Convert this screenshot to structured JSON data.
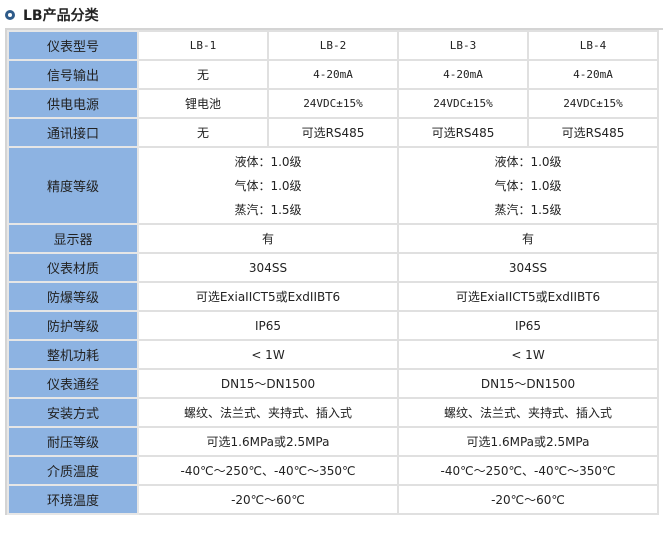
{
  "title": "LB产品分类",
  "models": {
    "label": "仪表型号",
    "values": [
      "LB-1",
      "LB-2",
      "LB-3",
      "LB-4"
    ]
  },
  "signal": {
    "label": "信号输出",
    "values": [
      "无",
      "4-20mA",
      "4-20mA",
      "4-20mA"
    ]
  },
  "power": {
    "label": "供电电源",
    "values": [
      "锂电池",
      "24VDC±15%",
      "24VDC±15%",
      "24VDC±15%"
    ]
  },
  "comm": {
    "label": "通讯接口",
    "values": [
      "无",
      "可选RS485",
      "可选RS485",
      "可选RS485"
    ]
  },
  "accuracy": {
    "label": "精度等级",
    "groups": [
      [
        "液体：1.0级",
        "气体：1.0级",
        "蒸汽：1.5级"
      ],
      [
        "液体：1.0级",
        "气体：1.0级",
        "蒸汽：1.5级"
      ]
    ]
  },
  "rows": [
    {
      "label": "显示器",
      "values": [
        "有",
        "有"
      ]
    },
    {
      "label": "仪表材质",
      "values": [
        "304SS",
        "304SS"
      ]
    },
    {
      "label": "防爆等级",
      "values": [
        "可选ExiaIICT5或ExdIIBT6",
        "可选ExiaIICT5或ExdIIBT6"
      ]
    },
    {
      "label": "防护等级",
      "values": [
        "IP65",
        "IP65"
      ]
    },
    {
      "label": "整机功耗",
      "values": [
        "< 1W",
        "< 1W"
      ]
    },
    {
      "label": "仪表通经",
      "values": [
        "DN15～DN1500",
        "DN15～DN1500"
      ]
    },
    {
      "label": "安装方式",
      "values": [
        "螺纹、法兰式、夹持式、插入式",
        "螺纹、法兰式、夹持式、插入式"
      ]
    },
    {
      "label": "耐压等级",
      "values": [
        "可选1.6MPa或2.5MPa",
        "可选1.6MPa或2.5MPa"
      ]
    },
    {
      "label": "介质温度",
      "values": [
        "-40℃～250℃、-40℃～350℃",
        "-40℃～250℃、-40℃～350℃"
      ]
    },
    {
      "label": "环境温度",
      "values": [
        "-20℃～60℃",
        "-20℃～60℃"
      ]
    }
  ]
}
